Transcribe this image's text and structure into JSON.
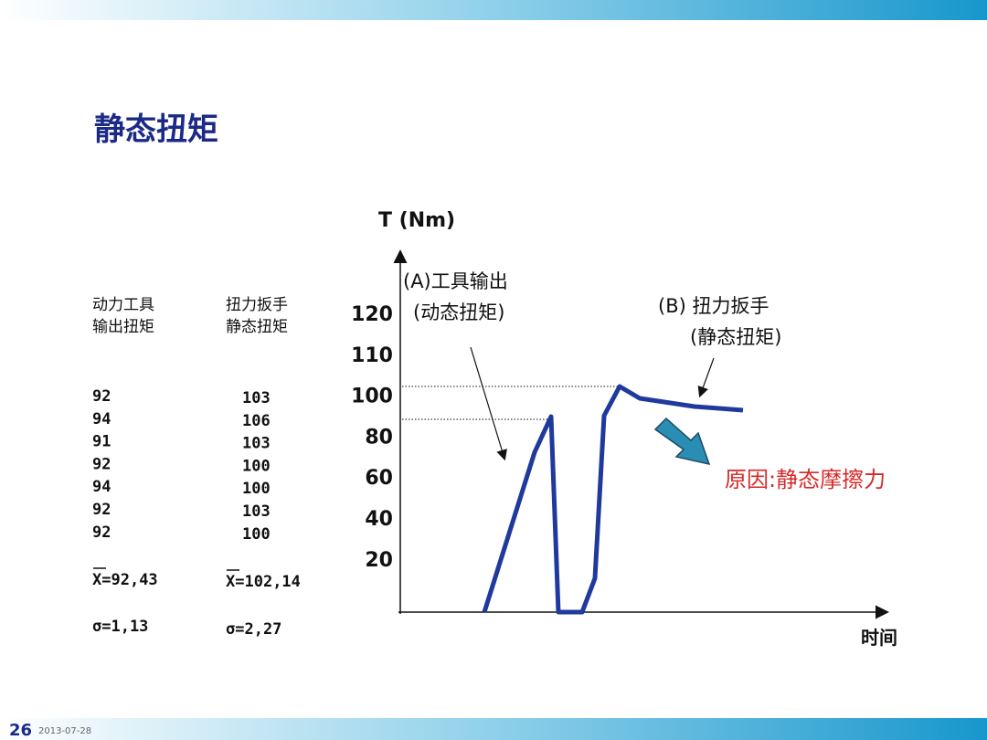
{
  "header": {
    "title": "静态扭矩"
  },
  "table": {
    "columns": [
      {
        "header": [
          "动力工具",
          "输出扭矩"
        ],
        "values": [
          "92",
          "94",
          "91",
          "92",
          "94",
          "92",
          "92"
        ],
        "mean": {
          "symbol": "X",
          "value": "=92,43"
        },
        "sigma": "σ=1,13"
      },
      {
        "header": [
          "扭力扳手",
          "静态扭矩"
        ],
        "values": [
          "103",
          "106",
          "103",
          "100",
          "100",
          "103",
          "100"
        ],
        "mean": {
          "symbol": "X",
          "value": "=102,14"
        },
        "sigma": "σ=2,27"
      }
    ]
  },
  "diagram": {
    "y_axis_label": "T (Nm)",
    "x_axis_label": "时间",
    "y_labels": [
      "120",
      "110",
      "100",
      "80",
      "60",
      "40",
      "20"
    ],
    "annotation_a": [
      "(A)工具输出",
      "(动态扭矩)"
    ],
    "annotation_b": [
      "(B) 扭力扳手",
      "(静态扭矩)"
    ],
    "reason": "原因:静态摩擦力"
  },
  "footer": {
    "page": "26",
    "date": "2013-07-28"
  }
}
